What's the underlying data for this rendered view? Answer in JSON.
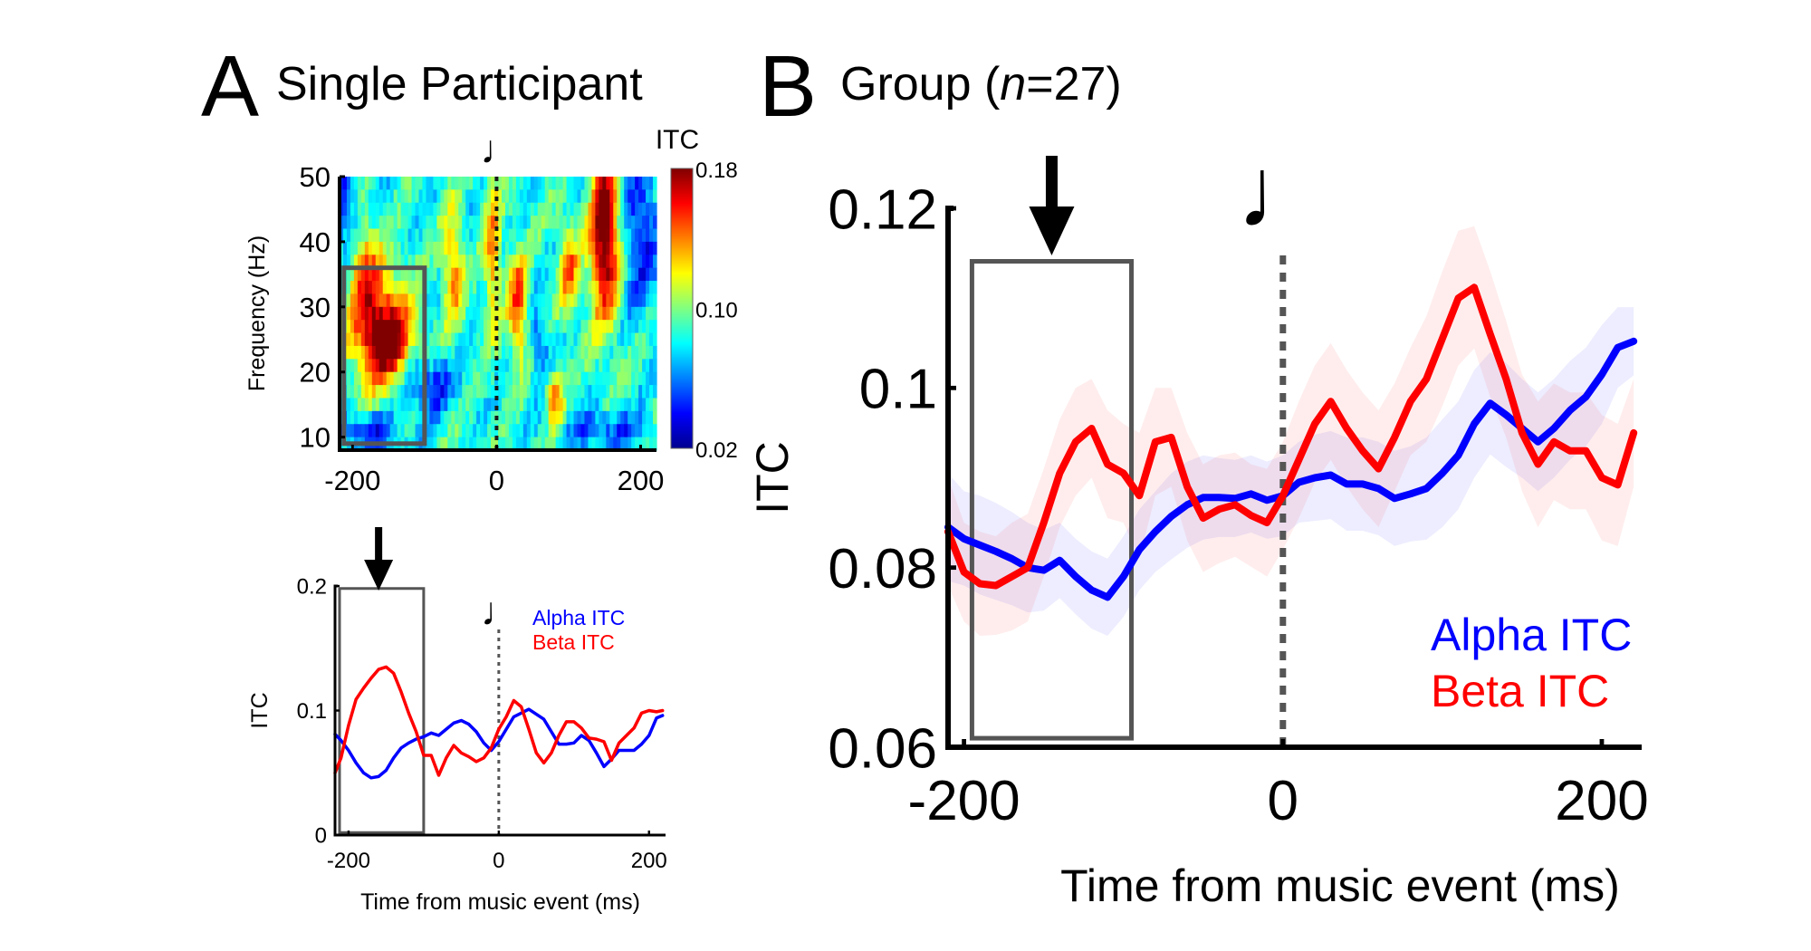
{
  "figure": {
    "panel_a": {
      "letter": "A",
      "title": "Single Participant"
    },
    "panel_b": {
      "letter": "B",
      "title_prefix": "Group (",
      "title_italic": "n",
      "title_suffix": "=27)"
    }
  },
  "chart_data": [
    {
      "id": "a_heatmap",
      "type": "heatmap",
      "title": "",
      "xlabel": "",
      "ylabel": "Frequency (Hz)",
      "xlim": [
        -218,
        222
      ],
      "ylim": [
        8,
        50
      ],
      "xticks": [
        -200,
        0,
        200
      ],
      "xtick_labels": [
        "-200",
        "0",
        "200"
      ],
      "yticks": [
        10,
        20,
        30,
        40,
        50
      ],
      "ytick_labels": [
        "10",
        "20",
        "30",
        "40",
        "50"
      ],
      "colormap": "jet",
      "colorbar": {
        "label": "ITC",
        "range": [
          0.02,
          0.18
        ],
        "ticks": [
          0.02,
          0.1,
          0.18
        ],
        "tick_labels": [
          "0.02",
          "0.10",
          "0.18"
        ]
      },
      "event_marker": {
        "x": 0,
        "style": "dotted",
        "symbol": "♩"
      },
      "highlight_box": {
        "x": [
          -212,
          -100
        ],
        "y": [
          9,
          36
        ]
      },
      "hotspots": [
        {
          "t": -165,
          "f": 28,
          "value": 0.155,
          "wt": 28,
          "wf": 7
        },
        {
          "t": -185,
          "f": 42,
          "value": 0.14,
          "wt": 14,
          "wf": 8
        },
        {
          "t": -150,
          "f": 24,
          "value": 0.145,
          "wt": 25,
          "wf": 4
        },
        {
          "t": 150,
          "f": 38,
          "value": 0.175,
          "wt": 14,
          "wf": 8
        },
        {
          "t": 150,
          "f": 46,
          "value": 0.14,
          "wt": 12,
          "wf": 5
        },
        {
          "t": 30,
          "f": 30,
          "value": 0.15,
          "wt": 10,
          "wf": 6
        },
        {
          "t": -5,
          "f": 38,
          "value": 0.14,
          "wt": 8,
          "wf": 8
        },
        {
          "t": -60,
          "f": 36,
          "value": 0.14,
          "wt": 10,
          "wf": 6
        },
        {
          "t": 80,
          "f": 16,
          "value": 0.145,
          "wt": 8,
          "wf": 3
        },
        {
          "t": 100,
          "f": 36,
          "value": 0.14,
          "wt": 10,
          "wf": 5
        },
        {
          "t": -200,
          "f": 46,
          "value": 0.03,
          "wt": 25,
          "wf": 6
        },
        {
          "t": -95,
          "f": 18,
          "value": 0.04,
          "wt": 25,
          "wf": 3
        },
        {
          "t": -180,
          "f": 11,
          "value": 0.04,
          "wt": 35,
          "wf": 2
        },
        {
          "t": 200,
          "f": 42,
          "value": 0.04,
          "wt": 18,
          "wf": 8
        },
        {
          "t": 150,
          "f": 11,
          "value": 0.05,
          "wt": 40,
          "wf": 2
        },
        {
          "t": 60,
          "f": 24,
          "value": 0.05,
          "wt": 10,
          "wf": 4
        }
      ]
    },
    {
      "id": "a_timecourse",
      "type": "line",
      "title": "",
      "xlabel": "Time from music event (ms)",
      "ylabel": "ITC",
      "xlim": [
        -218,
        222
      ],
      "ylim": [
        0,
        0.2
      ],
      "xticks": [
        -200,
        0,
        200
      ],
      "xtick_labels": [
        "-200",
        "0",
        "200"
      ],
      "yticks": [
        0,
        0.1,
        0.2
      ],
      "ytick_labels": [
        "0",
        "0.1",
        "0.2"
      ],
      "legend": {
        "position": "top-right",
        "entries": [
          "Alpha ITC",
          "Beta ITC"
        ]
      },
      "event_marker": {
        "x": 0,
        "style": "dotted",
        "symbol": "♩"
      },
      "highlight_box": {
        "x": [
          -212,
          -100
        ],
        "y": [
          0.002,
          0.198
        ]
      },
      "arrow_x": -160,
      "x": [
        -218,
        -210,
        -200,
        -190,
        -180,
        -170,
        -160,
        -150,
        -140,
        -130,
        -120,
        -110,
        -100,
        -90,
        -80,
        -70,
        -60,
        -50,
        -40,
        -30,
        -20,
        -10,
        0,
        10,
        20,
        30,
        40,
        50,
        60,
        70,
        80,
        90,
        100,
        110,
        120,
        130,
        140,
        150,
        160,
        170,
        180,
        190,
        200,
        210,
        218
      ],
      "series": [
        {
          "name": "Alpha ITC",
          "color": "#0000ff",
          "values": [
            0.081,
            0.076,
            0.068,
            0.058,
            0.05,
            0.046,
            0.047,
            0.052,
            0.062,
            0.07,
            0.074,
            0.077,
            0.079,
            0.082,
            0.08,
            0.085,
            0.09,
            0.092,
            0.089,
            0.083,
            0.074,
            0.068,
            0.075,
            0.085,
            0.095,
            0.098,
            0.101,
            0.097,
            0.093,
            0.083,
            0.073,
            0.073,
            0.074,
            0.08,
            0.076,
            0.066,
            0.055,
            0.061,
            0.068,
            0.068,
            0.068,
            0.073,
            0.08,
            0.094,
            0.096
          ]
        },
        {
          "name": "Beta ITC",
          "color": "#ff0000",
          "values": [
            0.05,
            0.062,
            0.088,
            0.109,
            0.118,
            0.126,
            0.133,
            0.135,
            0.13,
            0.115,
            0.098,
            0.083,
            0.064,
            0.064,
            0.048,
            0.062,
            0.072,
            0.066,
            0.063,
            0.059,
            0.062,
            0.07,
            0.085,
            0.095,
            0.108,
            0.103,
            0.085,
            0.066,
            0.058,
            0.066,
            0.08,
            0.091,
            0.091,
            0.086,
            0.078,
            0.077,
            0.075,
            0.06,
            0.074,
            0.08,
            0.086,
            0.098,
            0.1,
            0.099,
            0.1
          ]
        }
      ]
    },
    {
      "id": "b_group",
      "type": "line",
      "title": "",
      "xlabel": "Time from music event (ms)",
      "ylabel": "ITC",
      "xlim": [
        -210,
        225
      ],
      "ylim": [
        0.06,
        0.12
      ],
      "xticks": [
        -200,
        0,
        200
      ],
      "xtick_labels": [
        "-200",
        "0",
        "200"
      ],
      "yticks": [
        0.06,
        0.08,
        0.1,
        0.12
      ],
      "ytick_labels": [
        "0.06",
        "0.08",
        "0.1",
        "0.12"
      ],
      "legend": {
        "position": "bottom-right",
        "entries": [
          "Alpha ITC",
          "Beta ITC"
        ]
      },
      "event_marker": {
        "x": 0,
        "style": "dotted",
        "symbol": "♩"
      },
      "highlight_box": {
        "x": [
          -195,
          -95
        ],
        "y": [
          0.061,
          0.1141
        ]
      },
      "arrow_x": -145,
      "shaded_error": true,
      "x": [
        -210,
        -200,
        -190,
        -180,
        -170,
        -160,
        -150,
        -140,
        -130,
        -120,
        -110,
        -100,
        -90,
        -80,
        -70,
        -60,
        -50,
        -40,
        -30,
        -20,
        -10,
        0,
        10,
        20,
        30,
        40,
        50,
        60,
        70,
        80,
        90,
        100,
        110,
        120,
        130,
        140,
        150,
        160,
        170,
        180,
        190,
        200,
        210,
        220
      ],
      "series": [
        {
          "name": "Alpha ITC",
          "color": "#0000ff",
          "values": [
            0.0845,
            0.0832,
            0.0825,
            0.0818,
            0.081,
            0.08,
            0.0797,
            0.0808,
            0.079,
            0.0775,
            0.0767,
            0.079,
            0.082,
            0.084,
            0.0857,
            0.087,
            0.0878,
            0.0878,
            0.0877,
            0.0882,
            0.0875,
            0.088,
            0.0895,
            0.09,
            0.0903,
            0.0893,
            0.0893,
            0.0888,
            0.0877,
            0.0882,
            0.0888,
            0.0905,
            0.0925,
            0.096,
            0.0983,
            0.097,
            0.0955,
            0.094,
            0.0955,
            0.0975,
            0.099,
            0.1015,
            0.1045,
            0.1052
          ],
          "err_upper": [
            0.0905,
            0.0885,
            0.088,
            0.0872,
            0.0862,
            0.085,
            0.0842,
            0.085,
            0.0832,
            0.0818,
            0.081,
            0.0835,
            0.0865,
            0.0885,
            0.0905,
            0.0918,
            0.0925,
            0.0922,
            0.092,
            0.0925,
            0.0918,
            0.0925,
            0.094,
            0.0948,
            0.0952,
            0.0945,
            0.0945,
            0.094,
            0.093,
            0.0935,
            0.0945,
            0.0965,
            0.0985,
            0.102,
            0.104,
            0.1028,
            0.101,
            0.0995,
            0.101,
            0.103,
            0.1045,
            0.107,
            0.109,
            0.109
          ],
          "err_lower": [
            0.0785,
            0.078,
            0.077,
            0.0764,
            0.0758,
            0.075,
            0.0752,
            0.0766,
            0.0748,
            0.0732,
            0.0724,
            0.0745,
            0.0775,
            0.0795,
            0.0809,
            0.0822,
            0.0831,
            0.0834,
            0.0834,
            0.0839,
            0.0832,
            0.0835,
            0.085,
            0.0852,
            0.0854,
            0.0841,
            0.0841,
            0.0836,
            0.0824,
            0.0829,
            0.0831,
            0.0845,
            0.0865,
            0.09,
            0.0926,
            0.0912,
            0.09,
            0.0885,
            0.09,
            0.092,
            0.0935,
            0.096,
            0.1,
            0.1014
          ]
        },
        {
          "name": "Beta ITC",
          "color": "#ff0000",
          "values": [
            0.084,
            0.0795,
            0.0782,
            0.078,
            0.079,
            0.08,
            0.085,
            0.0905,
            0.094,
            0.0955,
            0.0915,
            0.0905,
            0.088,
            0.094,
            0.0945,
            0.089,
            0.0855,
            0.0865,
            0.087,
            0.0858,
            0.085,
            0.088,
            0.092,
            0.096,
            0.0985,
            0.0955,
            0.093,
            0.091,
            0.0945,
            0.0985,
            0.101,
            0.1055,
            0.11,
            0.1112,
            0.106,
            0.101,
            0.095,
            0.0915,
            0.094,
            0.093,
            0.093,
            0.09,
            0.0892,
            0.095
          ],
          "err_upper": [
            0.09,
            0.085,
            0.084,
            0.0835,
            0.085,
            0.086,
            0.091,
            0.0965,
            0.1,
            0.101,
            0.0975,
            0.096,
            0.095,
            0.1,
            0.1,
            0.095,
            0.0915,
            0.0925,
            0.0928,
            0.0915,
            0.091,
            0.094,
            0.0985,
            0.1025,
            0.105,
            0.102,
            0.0995,
            0.0975,
            0.1005,
            0.1045,
            0.108,
            0.113,
            0.1175,
            0.118,
            0.113,
            0.1075,
            0.1015,
            0.0985,
            0.1005,
            0.0995,
            0.0995,
            0.097,
            0.096,
            0.101
          ],
          "err_lower": [
            0.078,
            0.074,
            0.0724,
            0.0725,
            0.073,
            0.074,
            0.079,
            0.0845,
            0.088,
            0.09,
            0.0855,
            0.085,
            0.081,
            0.088,
            0.089,
            0.083,
            0.0795,
            0.0805,
            0.0812,
            0.0801,
            0.079,
            0.082,
            0.0855,
            0.0895,
            0.092,
            0.089,
            0.0865,
            0.0845,
            0.0885,
            0.0925,
            0.094,
            0.098,
            0.1025,
            0.1044,
            0.099,
            0.0945,
            0.0885,
            0.0845,
            0.0875,
            0.0865,
            0.0865,
            0.083,
            0.0824,
            0.089
          ]
        }
      ]
    }
  ]
}
